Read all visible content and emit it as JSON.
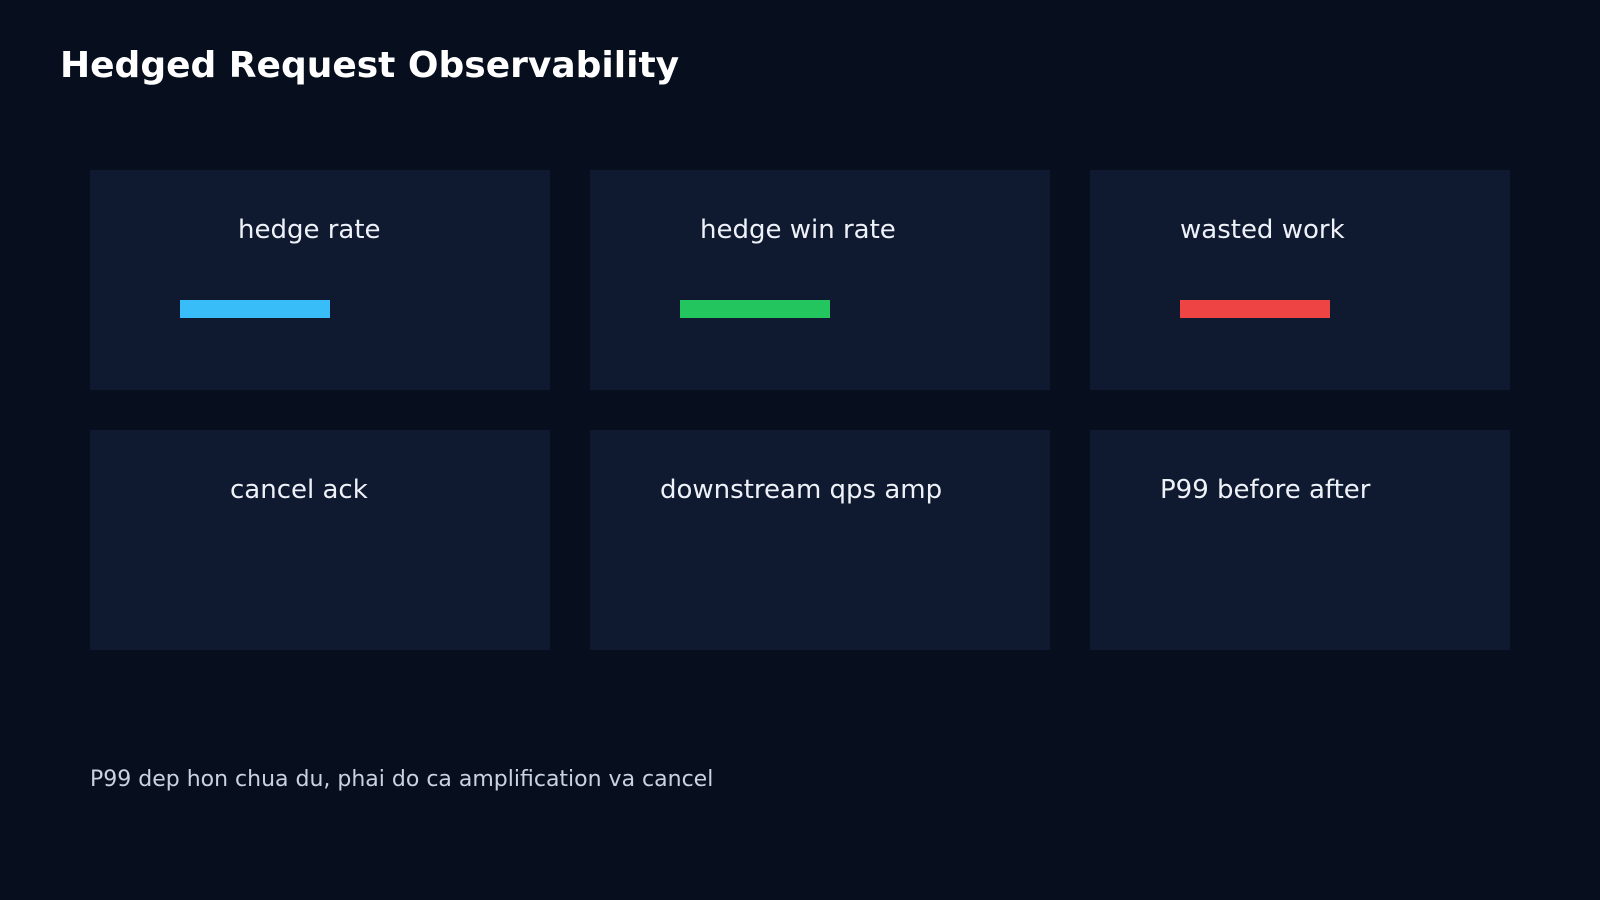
{
  "page": {
    "title": "Hedged Request Observability",
    "note": "P99 dep hon chua du, phai do ca amplification va cancel"
  },
  "cards": [
    {
      "title": "hedge rate",
      "bar_color": "#38bdf8",
      "bar_level": 1.0
    },
    {
      "title": "hedge win rate",
      "bar_color": "#22c55e",
      "bar_level": 1.0
    },
    {
      "title": "wasted work",
      "bar_color": "#ef4444",
      "bar_level": 1.0
    },
    {
      "title": "cancel ack"
    },
    {
      "title": "downstream qps amp"
    },
    {
      "title": "P99 before after"
    }
  ]
}
